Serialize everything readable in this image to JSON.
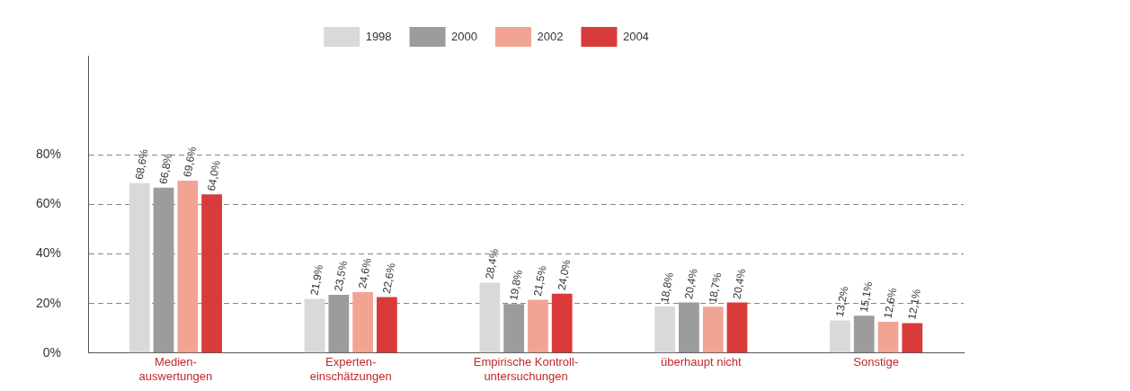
{
  "chart_data": {
    "type": "bar",
    "categories": [
      "Medien-\nauswertungen",
      "Experten-\neinschätzungen",
      "Empirische Kontroll-\nuntersuchungen",
      "überhaupt nicht",
      "Sonstige"
    ],
    "series": [
      {
        "name": "1998",
        "color": "#d9d9d9",
        "values": [
          68.6,
          21.9,
          28.4,
          18.8,
          13.2
        ],
        "value_labels": [
          "68,6%",
          "21,9%",
          "28,4%",
          "18,8%",
          "13,2%"
        ]
      },
      {
        "name": "2000",
        "color": "#9c9c9c",
        "values": [
          66.8,
          23.5,
          19.8,
          20.4,
          15.1
        ],
        "value_labels": [
          "66,8%",
          "23,5%",
          "19,8%",
          "20,4%",
          "15,1%"
        ]
      },
      {
        "name": "2002",
        "color": "#f2a493",
        "values": [
          69.6,
          24.6,
          21.5,
          18.7,
          12.6
        ],
        "value_labels": [
          "69,6%",
          "24,6%",
          "21,5%",
          "18,7%",
          "12,6%"
        ]
      },
      {
        "name": "2004",
        "color": "#d93a3a",
        "values": [
          64.0,
          22.6,
          24.0,
          20.4,
          12.1
        ],
        "value_labels": [
          "64,0%",
          "22,6%",
          "24,0%",
          "20,4%",
          "12,1%"
        ]
      }
    ],
    "ylim": [
      0,
      120
    ],
    "yticks": [
      {
        "value": 0,
        "label": "0%"
      },
      {
        "value": 20,
        "label": "20%"
      },
      {
        "value": 40,
        "label": "40%"
      },
      {
        "value": 60,
        "label": "60%"
      },
      {
        "value": 80,
        "label": "80%"
      }
    ],
    "grid": "y",
    "legend": "top"
  }
}
